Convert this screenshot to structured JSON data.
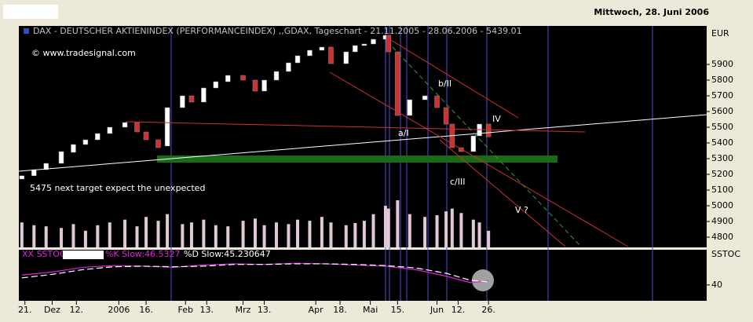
{
  "header": {
    "date": "Mittwoch, 28. Juni 2006"
  },
  "chart_data": [
    {
      "type": "candlestick",
      "title": "DAX - DEUTSCHER AKTIENINDEX (PERFORMANCEINDEX) ,,GDAX, Tageschart - 21.11.2005 - 28.06.2006 - 5439.01",
      "credit": "© www.tradesignal.com",
      "unit": "EUR",
      "annotations": [
        "5475 next target expect the unexpected",
        "b/II",
        "a/I",
        "IV",
        "c/III",
        "V ?"
      ],
      "x": [
        0,
        4,
        8,
        13,
        17,
        21,
        25,
        29,
        34,
        38,
        41,
        45,
        48,
        53,
        56,
        60,
        64,
        68,
        73,
        77,
        80,
        84,
        88,
        91,
        95,
        99,
        102,
        107,
        110,
        113,
        116,
        120,
        121,
        124,
        128,
        133,
        137,
        140,
        142,
        145,
        149,
        151,
        154
      ],
      "open": [
        5170,
        5191,
        5230,
        5270,
        5340,
        5390,
        5420,
        5460,
        5500,
        5530,
        5470,
        5420,
        5380,
        5625,
        5700,
        5660,
        5750,
        5790,
        5830,
        5800,
        5730,
        5800,
        5855,
        5910,
        5955,
        5990,
        6010,
        5905,
        5980,
        6020,
        6030,
        6060,
        6085,
        5980,
        5575,
        5675,
        5700,
        5625,
        5520,
        5370,
        5345,
        5445,
        5520
      ],
      "close": [
        5191,
        5230,
        5270,
        5345,
        5390,
        5420,
        5460,
        5500,
        5530,
        5470,
        5420,
        5370,
        5625,
        5700,
        5660,
        5750,
        5790,
        5830,
        5800,
        5730,
        5800,
        5855,
        5910,
        5955,
        5990,
        6010,
        5905,
        5980,
        6020,
        6030,
        6060,
        6085,
        5980,
        5575,
        5675,
        5700,
        5625,
        5520,
        5370,
        5345,
        5445,
        5520,
        5439.01
      ],
      "volume": [
        45,
        40,
        38,
        35,
        42,
        30,
        40,
        45,
        50,
        38,
        55,
        48,
        60,
        42,
        45,
        50,
        40,
        38,
        48,
        52,
        40,
        45,
        42,
        50,
        48,
        55,
        45,
        40,
        44,
        48,
        60,
        75,
        70,
        85,
        60,
        55,
        58,
        65,
        70,
        62,
        50,
        45,
        30
      ],
      "xlim": [
        -1,
        226
      ],
      "xticks": [
        {
          "value": 1,
          "label": "21."
        },
        {
          "value": 10,
          "label": "Dez"
        },
        {
          "value": 18,
          "label": "12."
        },
        {
          "value": 32,
          "label": "2006"
        },
        {
          "value": 41,
          "label": "16."
        },
        {
          "value": 54,
          "label": "Feb"
        },
        {
          "value": 61,
          "label": "13."
        },
        {
          "value": 73,
          "label": "Mrz"
        },
        {
          "value": 80,
          "label": "13."
        },
        {
          "value": 97,
          "label": "Apr"
        },
        {
          "value": 105,
          "label": "18."
        },
        {
          "value": 115,
          "label": "Mai"
        },
        {
          "value": 124,
          "label": "15."
        },
        {
          "value": 137,
          "label": "Jun"
        },
        {
          "value": 144,
          "label": "12."
        },
        {
          "value": 154,
          "label": "26."
        }
      ],
      "ylim": [
        4735,
        6145
      ],
      "yticks": [
        4800,
        4900,
        5000,
        5100,
        5200,
        5300,
        5400,
        5500,
        5600,
        5700,
        5800,
        5900
      ],
      "up_color": "#ffffff",
      "down_color": "#d03030",
      "volume_color": "#e0c8d8"
    },
    {
      "type": "line",
      "title": "XX SSTOC",
      "unit": "SSTOC",
      "x": [
        0,
        10,
        20,
        30,
        40,
        50,
        60,
        70,
        80,
        90,
        100,
        110,
        120,
        130,
        140,
        148,
        154
      ],
      "xlim": [
        -1,
        226
      ],
      "ylim": [
        13,
        100
      ],
      "yticks": [
        40
      ],
      "series": [
        {
          "name": "%K Slow:46.5327",
          "color": "#e020e0",
          "dash": false,
          "values": [
            57,
            62,
            70,
            73,
            72,
            70,
            74,
            76,
            75,
            77,
            76,
            74,
            72,
            66,
            55,
            44,
            46.5327
          ]
        },
        {
          "name": "%D Slow:45.230647",
          "color": "#ffffff",
          "dash": true,
          "values": [
            52,
            58,
            66,
            71,
            72,
            71,
            72,
            75,
            75,
            76,
            76,
            75,
            73,
            69,
            60,
            48,
            45.230647
          ]
        }
      ]
    }
  ]
}
